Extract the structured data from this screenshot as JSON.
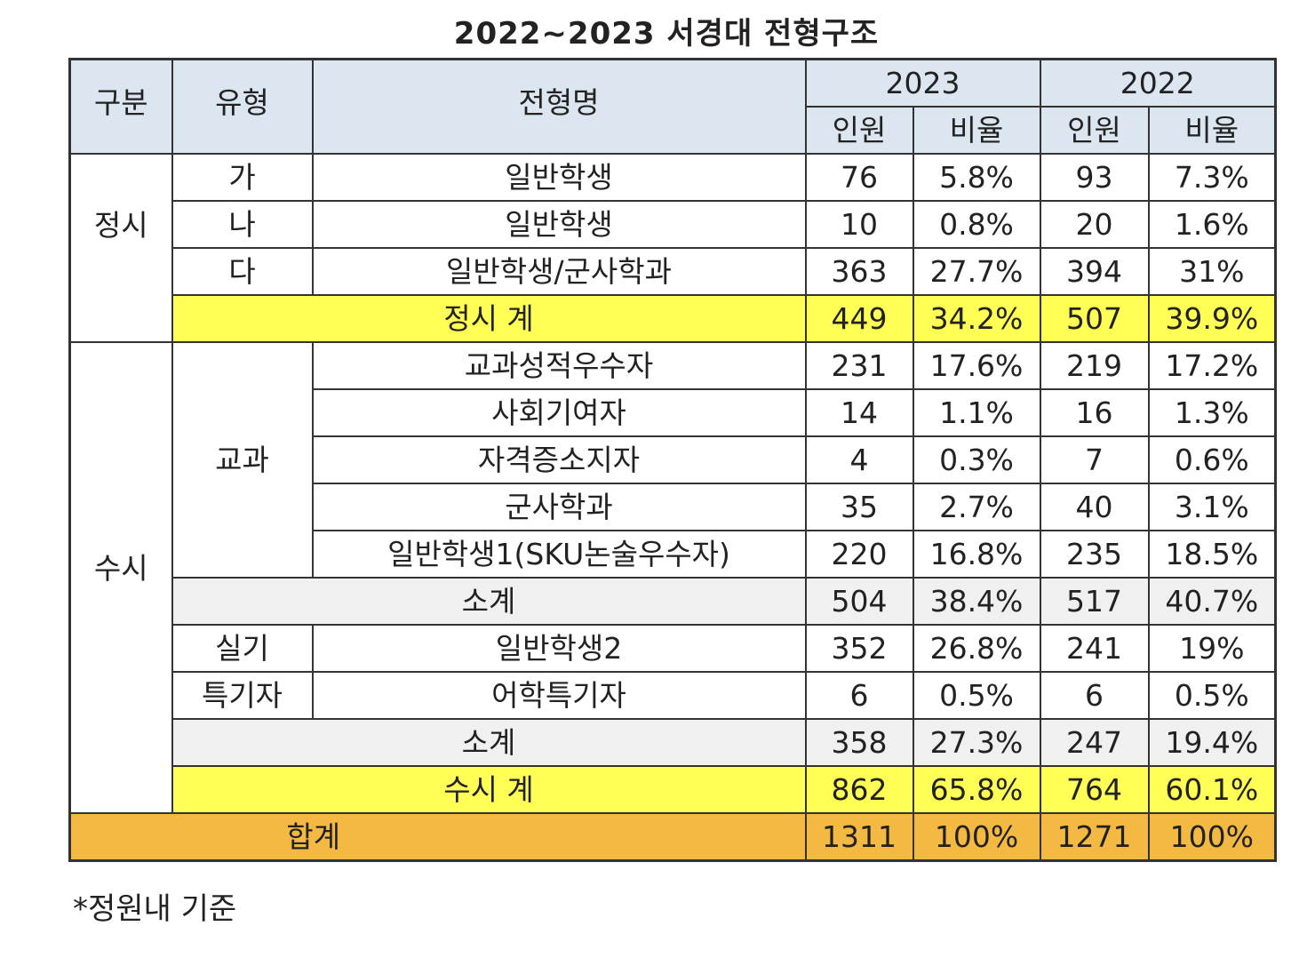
{
  "title": "2022~2023 서경대 전형구조",
  "colors": {
    "header_bg": "#dce6f1",
    "total_yellow": "#ffff55",
    "subtotal_gray": "#f0f0f0",
    "grand_total_orange": "#f4b942"
  },
  "header": {
    "category": "구분",
    "type": "유형",
    "name": "전형명",
    "year_a": "2023",
    "year_b": "2022",
    "count": "인원",
    "ratio": "비율"
  },
  "groups": {
    "jeongsi": "정시",
    "susi": "수시"
  },
  "rows": [
    {
      "type": "가",
      "name": "일반학생",
      "c23": "76",
      "r23": "5.8%",
      "c22": "93",
      "r22": "7.3%"
    },
    {
      "type": "나",
      "name": "일반학생",
      "c23": "10",
      "r23": "0.8%",
      "c22": "20",
      "r22": "1.6%"
    },
    {
      "type": "다",
      "name": "일반학생/군사학과",
      "c23": "363",
      "r23": "27.7%",
      "c22": "394",
      "r22": "31%"
    },
    {
      "name": "정시 계",
      "c23": "449",
      "r23": "34.2%",
      "c22": "507",
      "r22": "39.9%"
    },
    {
      "type": "교과",
      "name": "교과성적우수자",
      "c23": "231",
      "r23": "17.6%",
      "c22": "219",
      "r22": "17.2%"
    },
    {
      "name": "사회기여자",
      "c23": "14",
      "r23": "1.1%",
      "c22": "16",
      "r22": "1.3%"
    },
    {
      "name": "자격증소지자",
      "c23": "4",
      "r23": "0.3%",
      "c22": "7",
      "r22": "0.6%"
    },
    {
      "name": "군사학과",
      "c23": "35",
      "r23": "2.7%",
      "c22": "40",
      "r22": "3.1%"
    },
    {
      "name": "일반학생1(SKU논술우수자)",
      "c23": "220",
      "r23": "16.8%",
      "c22": "235",
      "r22": "18.5%"
    },
    {
      "name": "소계",
      "c23": "504",
      "r23": "38.4%",
      "c22": "517",
      "r22": "40.7%"
    },
    {
      "type": "실기",
      "name": "일반학생2",
      "c23": "352",
      "r23": "26.8%",
      "c22": "241",
      "r22": "19%"
    },
    {
      "type": "특기자",
      "name": "어학특기자",
      "c23": "6",
      "r23": "0.5%",
      "c22": "6",
      "r22": "0.5%"
    },
    {
      "name": "소계",
      "c23": "358",
      "r23": "27.3%",
      "c22": "247",
      "r22": "19.4%"
    },
    {
      "name": "수시 계",
      "c23": "862",
      "r23": "65.8%",
      "c22": "764",
      "r22": "60.1%"
    },
    {
      "name": "합계",
      "c23": "1311",
      "r23": "100%",
      "c22": "1271",
      "r22": "100%"
    }
  ],
  "note": "*정원내 기준"
}
